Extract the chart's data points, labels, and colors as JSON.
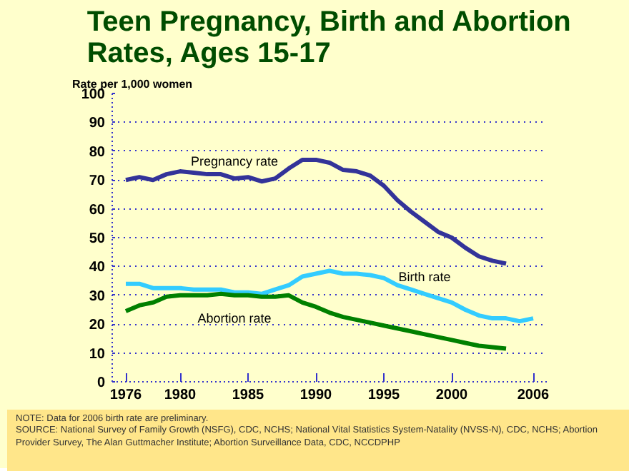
{
  "chart_data": {
    "type": "line",
    "title": "Teen Pregnancy, Birth and Abortion Rates, Ages 15-17",
    "ylabel": "Rate per 1,000 women",
    "x": [
      1976,
      1977,
      1978,
      1979,
      1980,
      1981,
      1982,
      1983,
      1984,
      1985,
      1986,
      1987,
      1988,
      1989,
      1990,
      1991,
      1992,
      1993,
      1994,
      1995,
      1996,
      1997,
      1998,
      1999,
      2000,
      2001,
      2002,
      2003,
      2004,
      2005,
      2006
    ],
    "series": [
      {
        "name": "Pregnancy rate",
        "color": "#333399",
        "values": [
          70,
          71,
          70,
          72,
          73,
          72.5,
          72,
          72,
          70.5,
          71,
          69.5,
          70.5,
          74,
          77,
          77,
          76,
          73.5,
          73,
          71.5,
          68,
          63,
          59,
          55.5,
          52,
          50,
          46.5,
          43.5,
          42,
          41,
          null,
          null
        ]
      },
      {
        "name": "Birth rate",
        "color": "#33ccff",
        "values": [
          34,
          34,
          32.5,
          32.5,
          32.5,
          32,
          32,
          32,
          31,
          31,
          30.5,
          32,
          33.5,
          36.5,
          37.5,
          38.5,
          37.5,
          37.5,
          37,
          36,
          33.5,
          32,
          30.5,
          29,
          27.5,
          25,
          23,
          22,
          22,
          21,
          22
        ]
      },
      {
        "name": "Abortion rate",
        "color": "#008000",
        "values": [
          24.5,
          26.5,
          27.5,
          29.5,
          30,
          30,
          30,
          30.5,
          30,
          30,
          29.5,
          29.5,
          30,
          27.5,
          26,
          24,
          22.5,
          21.5,
          20.5,
          19.5,
          18.5,
          17.5,
          16.5,
          15.5,
          14.5,
          13.5,
          12.5,
          12,
          11.5,
          null,
          null
        ]
      }
    ],
    "xlim": [
      1975,
      2007
    ],
    "ylim": [
      0,
      100
    ],
    "xticks": [
      1976,
      1980,
      1985,
      1990,
      1995,
      2000,
      2006
    ],
    "yticks": [
      0,
      10,
      20,
      30,
      40,
      50,
      60,
      70,
      80,
      90,
      100
    ],
    "grid": "y",
    "legend": false,
    "marker": "none",
    "line_style": "solid",
    "annotations": [
      "NOTE:  Data for 2006 birth rate are preliminary.",
      "SOURCE:  National Survey of Family Growth (NSFG), CDC, NCHS; National Vital Statistics System-Natality (NVSS-N), CDC, NCHS; Abortion Provider Survey, The Alan Guttmacher Institute; Abortion Surveillance Data, CDC, NCCDPHP"
    ]
  }
}
